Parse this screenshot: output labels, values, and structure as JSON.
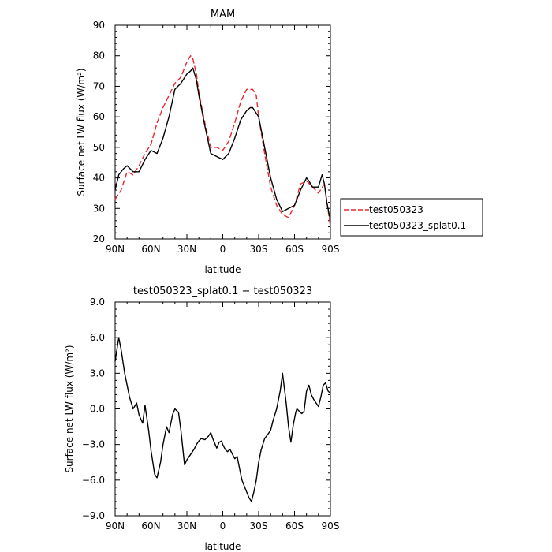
{
  "chart_data": [
    {
      "type": "line",
      "title": "MAM",
      "xlabel": "latitude",
      "ylabel": "Surface net LW flux (W/m²)",
      "xlim": [
        90,
        -90
      ],
      "ylim": [
        20,
        90
      ],
      "x_ticks": [
        90,
        60,
        30,
        0,
        -30,
        -60,
        -90
      ],
      "x_tick_labels": [
        "90N",
        "60N",
        "30N",
        "0",
        "30S",
        "60S",
        "90S"
      ],
      "y_ticks": [
        20,
        30,
        40,
        50,
        60,
        70,
        80,
        90
      ],
      "y_tick_labels": [
        "20",
        "30",
        "40",
        "50",
        "60",
        "70",
        "80",
        "90"
      ],
      "legend_position": "right",
      "series": [
        {
          "name": "test050323",
          "color": "#e8282d",
          "dash": "dashed",
          "x": [
            90,
            85,
            80,
            75,
            70,
            65,
            60,
            55,
            50,
            45,
            40,
            35,
            30,
            27,
            25,
            22,
            20,
            15,
            10,
            5,
            0,
            -5,
            -10,
            -15,
            -20,
            -25,
            -28,
            -30,
            -35,
            -40,
            -45,
            -50,
            -55,
            -60,
            -65,
            -70,
            -75,
            -80,
            -85,
            -90
          ],
          "y": [
            33,
            36,
            42,
            41,
            44,
            48,
            51,
            58,
            63,
            67,
            71,
            73,
            78,
            80,
            79,
            74,
            68,
            58,
            50,
            50,
            49,
            52,
            58,
            65,
            69,
            69,
            67,
            60,
            48,
            37,
            31,
            28,
            27,
            31,
            38,
            39,
            37,
            35,
            38,
            24
          ]
        },
        {
          "name": "test050323_splat0.1",
          "color": "#000000",
          "dash": "solid",
          "x": [
            90,
            87,
            83,
            80,
            75,
            70,
            65,
            60,
            55,
            50,
            45,
            40,
            35,
            30,
            27,
            25,
            22,
            20,
            15,
            10,
            5,
            0,
            -5,
            -10,
            -15,
            -20,
            -23,
            -25,
            -30,
            -35,
            -40,
            -45,
            -50,
            -55,
            -60,
            -65,
            -70,
            -72,
            -75,
            -80,
            -83,
            -85,
            -87,
            -90
          ],
          "y": [
            36,
            41,
            43,
            44,
            42,
            42,
            46,
            49,
            48,
            53,
            60,
            69,
            71,
            74,
            75,
            76,
            72,
            67,
            57,
            48,
            47,
            46,
            48,
            53,
            59,
            62,
            63,
            63,
            60,
            50,
            40,
            33,
            29,
            30,
            31,
            36,
            40,
            39,
            37,
            37,
            41,
            38,
            32,
            26
          ]
        }
      ]
    },
    {
      "type": "line",
      "title": "test050323_splat0.1 − test050323",
      "xlabel": "latitude",
      "ylabel": "Surface net LW flux (W/m²)",
      "xlim": [
        90,
        -90
      ],
      "ylim": [
        -9,
        9
      ],
      "x_ticks": [
        90,
        60,
        30,
        0,
        -30,
        -60,
        -90
      ],
      "x_tick_labels": [
        "90N",
        "60N",
        "30N",
        "0",
        "30S",
        "60S",
        "90S"
      ],
      "y_ticks": [
        -9,
        -6,
        -3,
        0,
        3,
        6,
        9
      ],
      "y_tick_labels": [
        "−9.0",
        "−6.0",
        "−3.0",
        "0.0",
        "3.0",
        "6.0",
        "9.0"
      ],
      "series": [
        {
          "color": "#000000",
          "dash": "solid",
          "x": [
            90,
            87,
            85,
            82,
            80,
            78,
            75,
            72,
            70,
            67,
            65,
            62,
            60,
            57,
            55,
            52,
            50,
            47,
            45,
            42,
            40,
            37,
            35,
            32,
            30,
            28,
            26,
            24,
            22,
            20,
            18,
            15,
            12,
            10,
            8,
            5,
            3,
            1,
            0,
            -2,
            -4,
            -6,
            -8,
            -10,
            -12,
            -14,
            -16,
            -18,
            -20,
            -22,
            -24,
            -26,
            -28,
            -30,
            -32,
            -35,
            -38,
            -40,
            -42,
            -45,
            -48,
            -50,
            -53,
            -55,
            -57,
            -59,
            -61,
            -62,
            -64,
            -66,
            -68,
            -70,
            -72,
            -74,
            -76,
            -78,
            -80,
            -82,
            -84,
            -86,
            -88,
            -90
          ],
          "y": [
            4.0,
            6.0,
            5.0,
            3.0,
            2.0,
            1.0,
            0.0,
            0.5,
            -0.5,
            -1.2,
            0.3,
            -1.8,
            -3.5,
            -5.5,
            -5.8,
            -4.5,
            -3.0,
            -1.5,
            -2.0,
            -0.5,
            0.0,
            -0.3,
            -1.8,
            -4.7,
            -4.3,
            -4.0,
            -3.7,
            -3.4,
            -3.0,
            -2.7,
            -2.5,
            -2.6,
            -2.3,
            -2.0,
            -2.6,
            -3.3,
            -2.8,
            -2.7,
            -3.0,
            -3.4,
            -3.6,
            -3.4,
            -3.8,
            -4.2,
            -4.0,
            -5.0,
            -6.0,
            -6.5,
            -7.0,
            -7.5,
            -7.8,
            -7.0,
            -6.0,
            -4.5,
            -3.5,
            -2.5,
            -2.1,
            -1.8,
            -1.0,
            0.0,
            1.5,
            3.0,
            0.5,
            -1.5,
            -2.8,
            -1.3,
            -0.3,
            0.0,
            -0.2,
            -0.4,
            -0.2,
            1.5,
            2.0,
            1.2,
            0.8,
            0.5,
            0.2,
            1.0,
            2.0,
            2.2,
            1.5,
            1.3
          ]
        }
      ]
    }
  ]
}
